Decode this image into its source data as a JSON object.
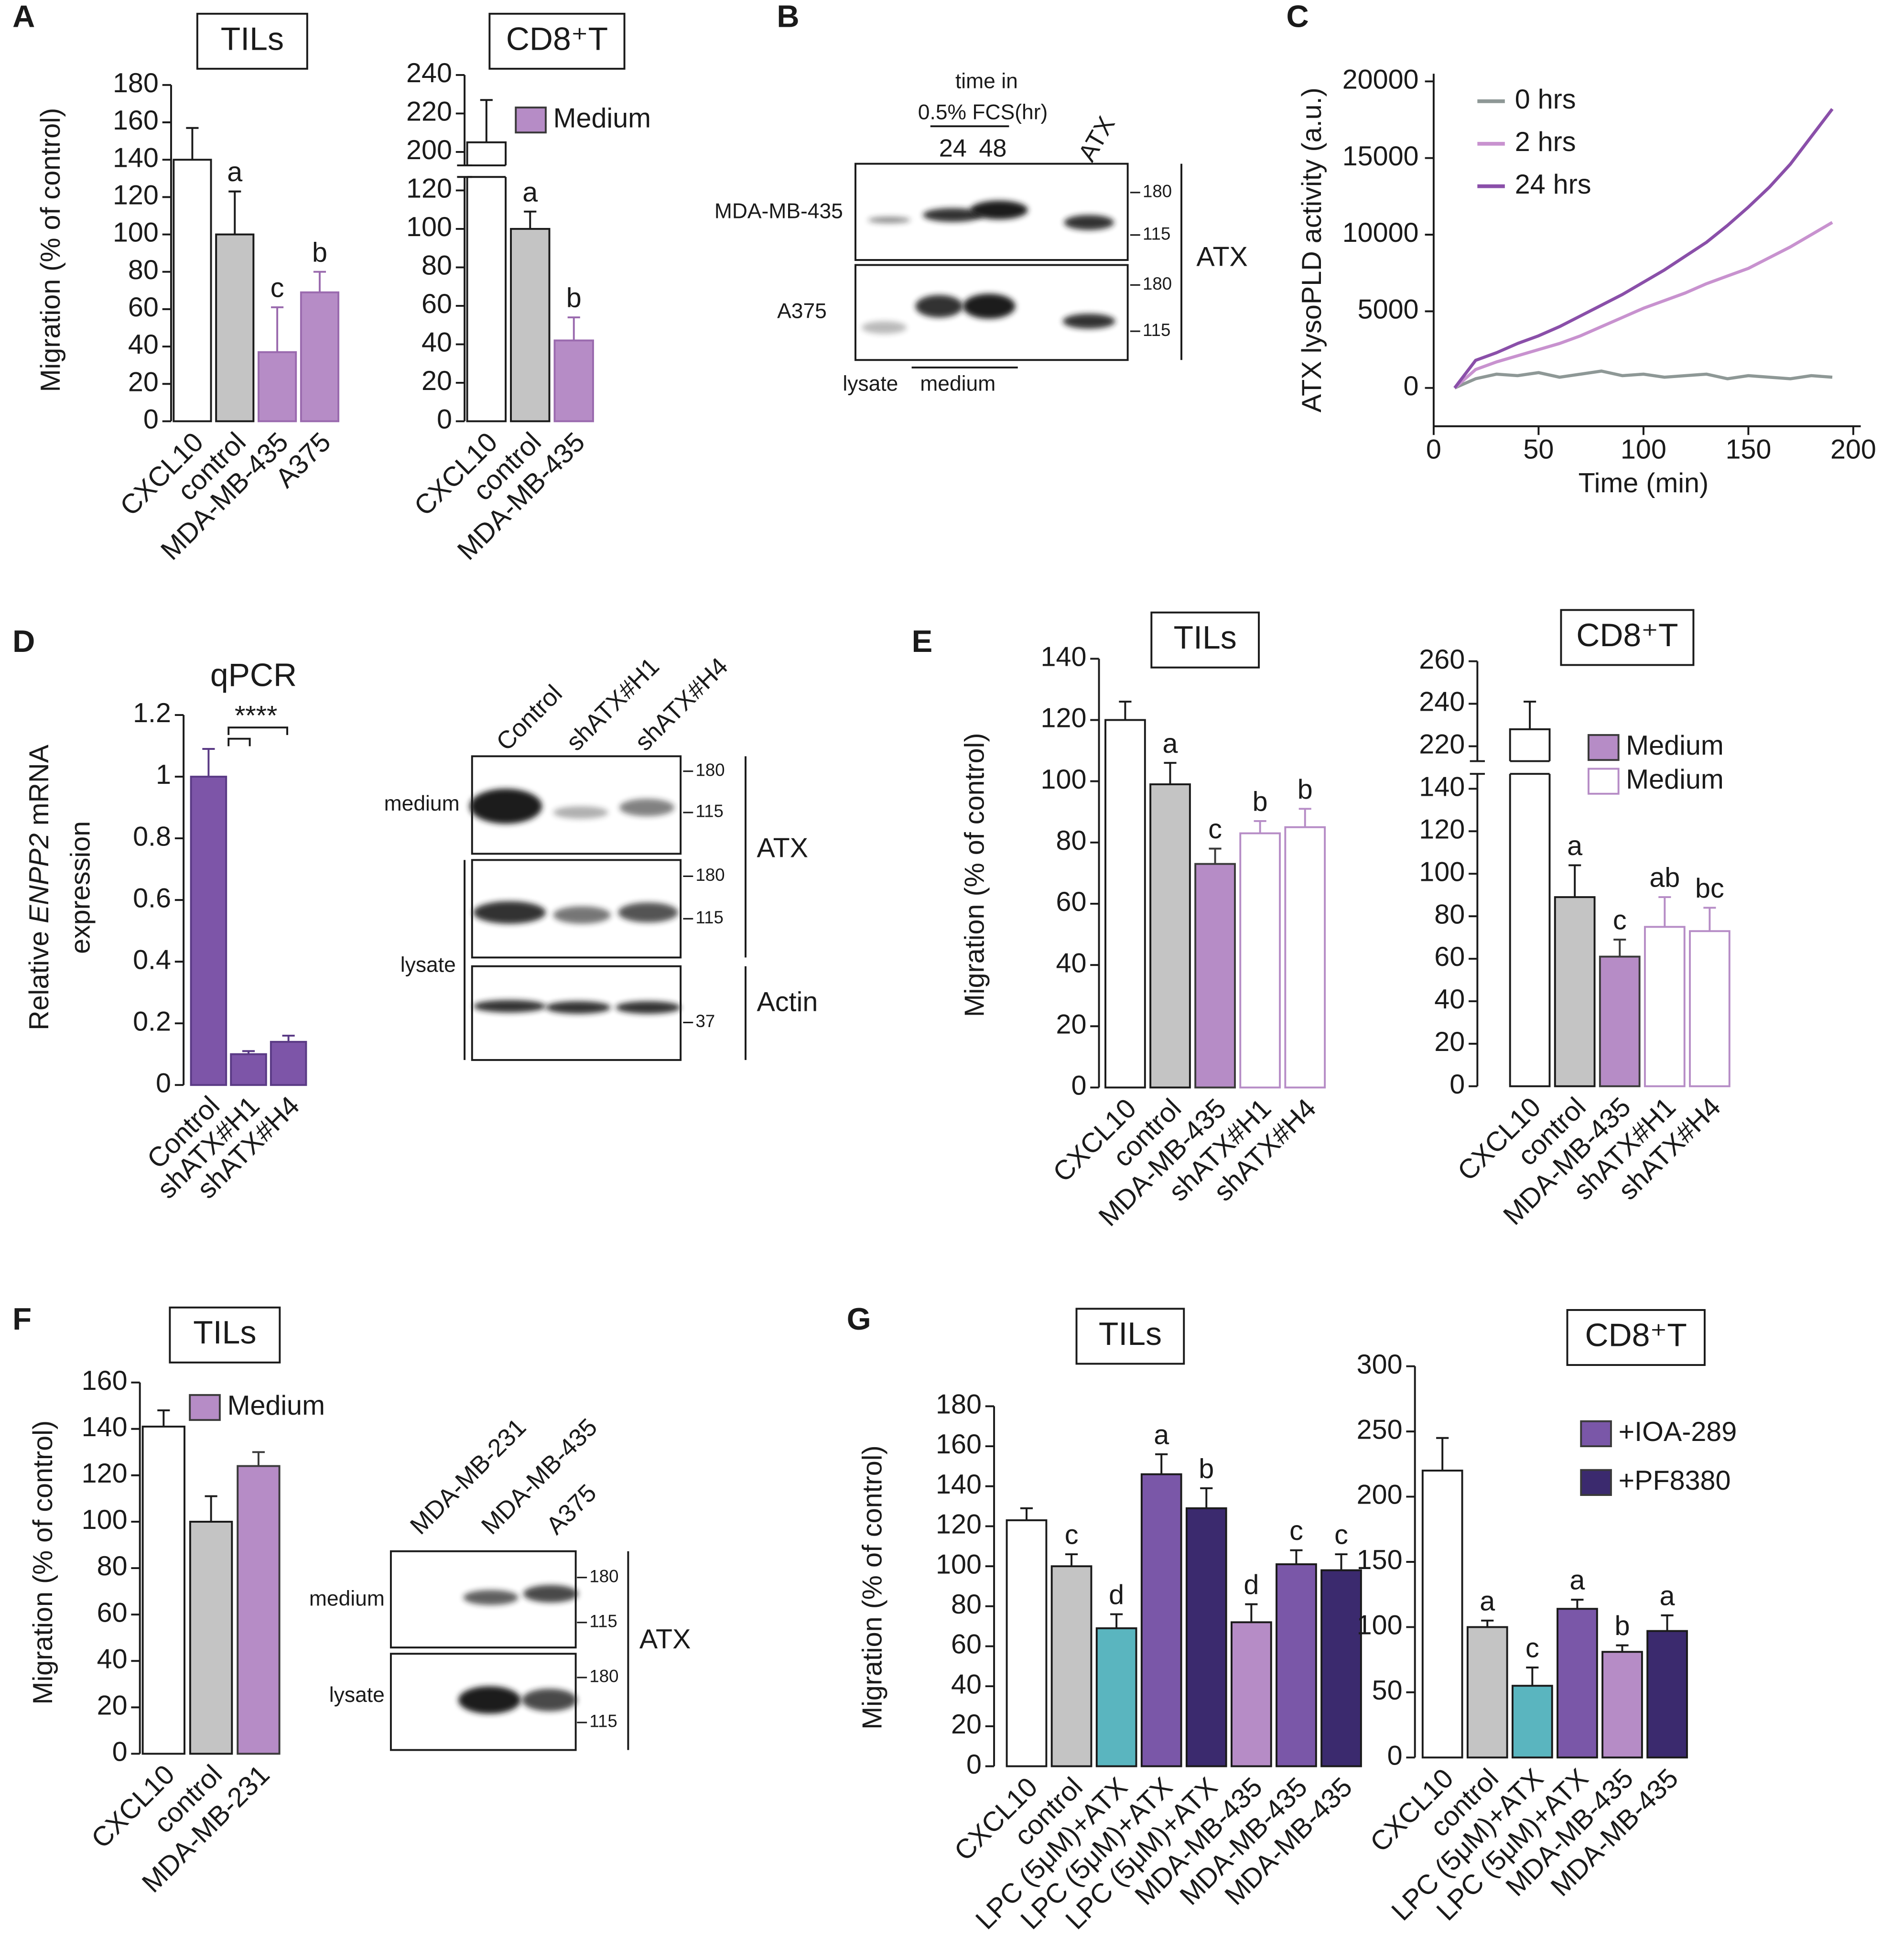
{
  "panel_labels": [
    "A",
    "B",
    "C",
    "D",
    "E",
    "F",
    "G"
  ],
  "chart_data": [
    {
      "type": "bar",
      "title": "TILs",
      "ylabel": "Migration (% of control)",
      "categories": [
        "CXCL10",
        "control",
        "MDA-MB-435",
        "A375"
      ],
      "values": [
        140,
        100,
        37,
        69
      ],
      "errors": [
        17,
        23,
        24,
        11
      ],
      "annotations": [
        null,
        "a",
        "c",
        "b"
      ],
      "colors": [
        "#ffffff",
        "#c4c4c4",
        "#b68cc6",
        "#b68cc6"
      ],
      "edge_colors": [
        "#1a1a1a",
        "#1a1a1a",
        "#9a6aae",
        "#9a6aae"
      ],
      "ylim": [
        0,
        180
      ],
      "yticks": [
        0,
        20,
        40,
        60,
        80,
        100,
        120,
        140,
        160,
        180
      ]
    },
    {
      "type": "bar",
      "title": "CD8⁺T",
      "categories": [
        "CXCL10",
        "control",
        "MDA-MB-435"
      ],
      "values": [
        205,
        100,
        42
      ],
      "errors": [
        22,
        9,
        12
      ],
      "annotations": [
        null,
        "a",
        "b"
      ],
      "colors": [
        "#ffffff",
        "#c4c4c4",
        "#b68cc6"
      ],
      "edge_colors": [
        "#1a1a1a",
        "#1a1a1a",
        "#9a6aae"
      ],
      "ylim": [
        0,
        240
      ],
      "yticks": [
        0,
        20,
        40,
        60,
        80,
        100,
        120,
        200,
        220,
        240
      ],
      "axis_break": [
        120,
        200
      ],
      "legend": [
        {
          "name": "Medium",
          "color": "#b68cc6",
          "style": "filled"
        }
      ]
    },
    {
      "type": "line",
      "ylabel": "ATX lysoPLD activity (a.u.)",
      "xlabel": "Time (min)",
      "x": [
        10,
        20,
        30,
        40,
        50,
        60,
        70,
        80,
        90,
        100,
        110,
        120,
        130,
        140,
        150,
        160,
        170,
        180,
        190
      ],
      "series": [
        {
          "name": "0 hrs",
          "color": "#8e9896",
          "values": [
            0,
            600,
            900,
            800,
            1000,
            700,
            900,
            1100,
            800,
            900,
            700,
            800,
            900,
            600,
            800,
            700,
            600,
            800,
            700
          ]
        },
        {
          "name": "2 hrs",
          "color": "#c892cf",
          "values": [
            0,
            1200,
            1700,
            2100,
            2500,
            2900,
            3400,
            4000,
            4600,
            5200,
            5700,
            6200,
            6800,
            7300,
            7800,
            8500,
            9200,
            10000,
            10800
          ]
        },
        {
          "name": "24 hrs",
          "color": "#8a4fa9",
          "values": [
            0,
            1800,
            2300,
            2900,
            3400,
            4000,
            4700,
            5400,
            6100,
            6900,
            7700,
            8600,
            9500,
            10600,
            11800,
            13100,
            14600,
            16400,
            18200
          ]
        }
      ],
      "xlim": [
        0,
        200
      ],
      "xticks": [
        0,
        50,
        100,
        150,
        200
      ],
      "ylim": [
        -2500,
        20500
      ],
      "yticks": [
        0,
        5000,
        10000,
        15000,
        20000
      ],
      "legend": "upper left"
    },
    {
      "type": "bar",
      "title": "qPCR",
      "title_box": false,
      "ylabel": [
        [
          {
            "text": "Relative "
          },
          {
            "text": "ENPP2",
            "italic": true
          },
          {
            "text": " mRNA"
          }
        ],
        [
          {
            "text": "expression"
          }
        ]
      ],
      "categories": [
        "Control",
        "shATX#H1",
        "shATX#H4"
      ],
      "values": [
        1,
        0.1,
        0.14
      ],
      "errors": [
        0.09,
        0.01,
        0.02
      ],
      "colors": [
        "#7d55a8",
        "#7d55a8",
        "#7d55a8"
      ],
      "edge_colors": [
        "#5a3a85",
        "#5a3a85",
        "#5a3a85"
      ],
      "ylim": [
        0,
        1.2
      ],
      "yticks": [
        0,
        0.2,
        0.4,
        0.6,
        0.8,
        1,
        1.2
      ],
      "significance": "****"
    },
    {
      "type": "bar",
      "title": "TILs",
      "ylabel": "Migration (% of control)",
      "categories": [
        "CXCL10",
        "control",
        "MDA-MB-435",
        "shATX#H1",
        "shATX#H4"
      ],
      "values": [
        120,
        99,
        73,
        83,
        85
      ],
      "errors": [
        6,
        7,
        5,
        4,
        6
      ],
      "annotations": [
        null,
        "a",
        "c",
        "b",
        "b"
      ],
      "colors": [
        "#ffffff",
        "#c4c4c4",
        "#b68cc6",
        "#ffffff",
        "#ffffff"
      ],
      "edge_colors": [
        "#1a1a1a",
        "#1a1a1a",
        "#3a3a3a",
        "#b68cc6",
        "#b68cc6"
      ],
      "ylim": [
        0,
        140
      ],
      "yticks": [
        0,
        20,
        40,
        60,
        80,
        100,
        120,
        140
      ]
    },
    {
      "type": "bar",
      "title": "CD8⁺T",
      "categories": [
        "CXCL10",
        "control",
        "MDA-MB-435",
        "shATX#H1",
        "shATX#H4"
      ],
      "values": [
        228,
        89,
        61,
        75,
        73
      ],
      "errors": [
        13,
        15,
        8,
        14,
        11
      ],
      "annotations": [
        null,
        "a",
        "c",
        "ab",
        "bc"
      ],
      "colors": [
        "#ffffff",
        "#c4c4c4",
        "#b68cc6",
        "#ffffff",
        "#ffffff"
      ],
      "edge_colors": [
        "#1a1a1a",
        "#1a1a1a",
        "#3a3a3a",
        "#b68cc6",
        "#b68cc6"
      ],
      "ylim": [
        0,
        260
      ],
      "yticks": [
        0,
        20,
        40,
        60,
        80,
        100,
        120,
        140,
        220,
        240,
        260
      ],
      "axis_break": [
        140,
        220
      ],
      "legend": [
        {
          "name": "Medium",
          "color": "#b68cc6",
          "style": "filled"
        },
        {
          "name": "Medium",
          "color": "#b68cc6",
          "style": "open"
        }
      ]
    },
    {
      "type": "bar",
      "title": "TILs",
      "ylabel": "Migration (% of control)",
      "categories": [
        "CXCL10",
        "control",
        "MDA-MB-231"
      ],
      "values": [
        141,
        100,
        124
      ],
      "errors": [
        7,
        11,
        6
      ],
      "colors": [
        "#ffffff",
        "#c4c4c4",
        "#b68cc6"
      ],
      "edge_colors": [
        "#1a1a1a",
        "#1a1a1a",
        "#3a3a3a"
      ],
      "ylim": [
        0,
        160
      ],
      "yticks": [
        0,
        20,
        40,
        60,
        80,
        100,
        120,
        140,
        160
      ],
      "legend": [
        {
          "name": "Medium",
          "color": "#b68cc6",
          "style": "filled"
        }
      ]
    },
    {
      "type": "bar",
      "title": "TILs",
      "ylabel": "Migration (% of control)",
      "categories": [
        "CXCL10",
        "control",
        "LPC (5μM)+ATX",
        "LPC (5μM)+ATX",
        "LPC (5μM)+ATX",
        "MDA-MB-435",
        "MDA-MB-435",
        "MDA-MB-435"
      ],
      "values": [
        123,
        100,
        69,
        146,
        129,
        72,
        101,
        98
      ],
      "errors": [
        6,
        6,
        7,
        10,
        10,
        9,
        7,
        8
      ],
      "annotations": [
        null,
        "c",
        "d",
        "a",
        "b",
        "d",
        "c",
        "c"
      ],
      "colors": [
        "#ffffff",
        "#c4c4c4",
        "#5ab5bf",
        "#7a57a8",
        "#3b2a6e",
        "#b68cc6",
        "#7a57a8",
        "#3b2a6e"
      ],
      "edge_colors": [
        "#1a1a1a",
        "#1a1a1a",
        "#1a1a1a",
        "#1a1a1a",
        "#1a1a1a",
        "#1a1a1a",
        "#1a1a1a",
        "#1a1a1a"
      ],
      "ylim": [
        0,
        180
      ],
      "yticks": [
        0,
        20,
        40,
        60,
        80,
        100,
        120,
        140,
        160,
        180
      ]
    },
    {
      "type": "bar",
      "title": "CD8⁺T",
      "categories": [
        "CXCL10",
        "control",
        "LPC (5μM)+ATX",
        "LPC (5μM)+ATX",
        "MDA-MB-435",
        "MDA-MB-435"
      ],
      "values": [
        220,
        100,
        55,
        114,
        81,
        97
      ],
      "errors": [
        25,
        5,
        14,
        7,
        5,
        12
      ],
      "annotations": [
        null,
        "a",
        "c",
        "a",
        "b",
        "a"
      ],
      "colors": [
        "#ffffff",
        "#c4c4c4",
        "#5ab5bf",
        "#7a57a8",
        "#b68cc6",
        "#3b2a6e"
      ],
      "edge_colors": [
        "#1a1a1a",
        "#1a1a1a",
        "#1a1a1a",
        "#1a1a1a",
        "#1a1a1a",
        "#1a1a1a"
      ],
      "ylim": [
        0,
        300
      ],
      "yticks": [
        0,
        50,
        100,
        150,
        200,
        250,
        300
      ],
      "legend": [
        {
          "name": "+IOA-289",
          "color": "#7a57a8",
          "style": "filled"
        },
        {
          "name": "+PF8380",
          "color": "#3b2a6e",
          "style": "filled"
        }
      ]
    }
  ],
  "blots": [
    {
      "header": [
        "time in",
        "0.5% FCS(hr)"
      ],
      "lanes": [
        "24",
        "48",
        "ATX"
      ],
      "rows": [
        "MDA-MB-435",
        "A375"
      ],
      "markers": [
        180,
        115,
        180,
        115
      ],
      "targets": [
        "ATX"
      ],
      "footer": [
        "lysate",
        "medium"
      ]
    },
    {
      "lanes": [
        "Control",
        "shATX#H1",
        "shATX#H4"
      ],
      "rows": [
        "medium",
        "lysate"
      ],
      "markers": [
        180,
        115,
        180,
        115,
        37
      ],
      "targets": [
        "ATX",
        "Actin"
      ]
    },
    {
      "lanes": [
        "MDA-MB-231",
        "MDA-MB-435",
        "A375"
      ],
      "rows": [
        "medium",
        "lysate"
      ],
      "markers": [
        180,
        115,
        180,
        115
      ],
      "targets": [
        "ATX"
      ]
    }
  ]
}
